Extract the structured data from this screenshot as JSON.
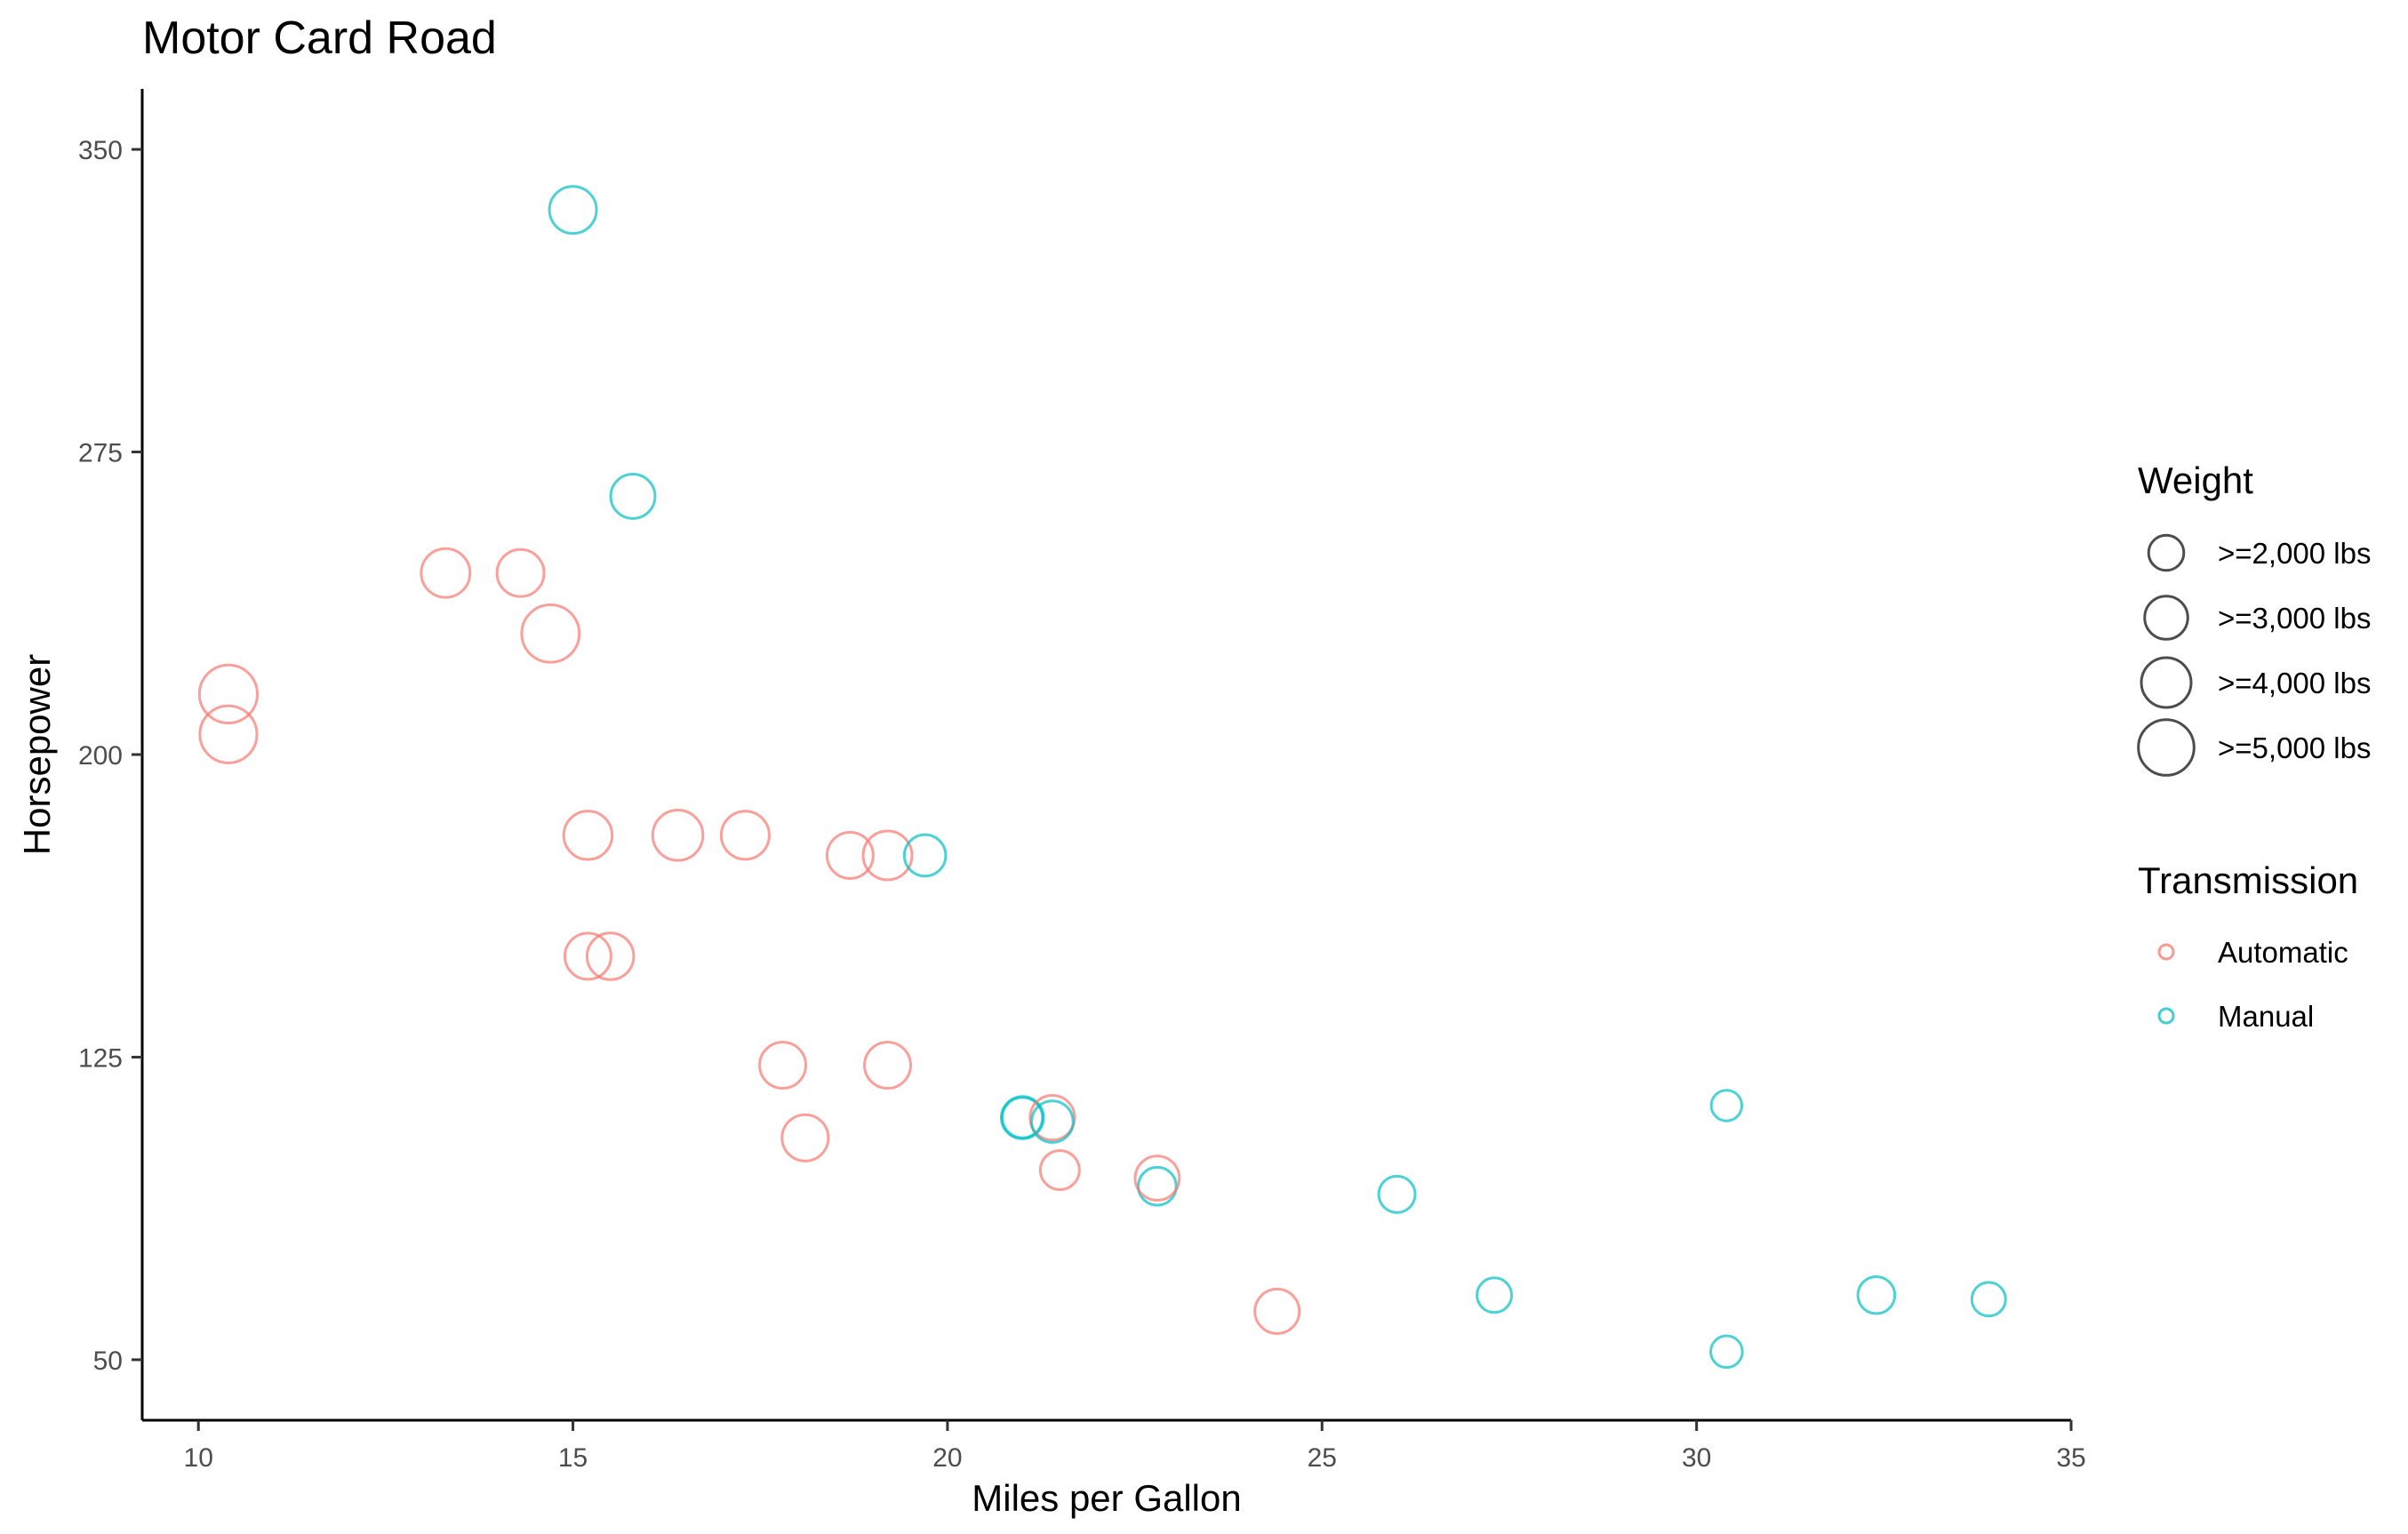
{
  "chart_data": {
    "type": "scatter",
    "title": "Motor Card Road",
    "xlabel": "Miles per Gallon",
    "ylabel": "Horsepower",
    "xlim": [
      9.25,
      35
    ],
    "ylim": [
      35,
      365
    ],
    "x_ticks": [
      10,
      15,
      20,
      25,
      30,
      35
    ],
    "y_ticks": [
      50,
      125,
      200,
      275,
      350
    ],
    "grid": false,
    "legend_placement": "right",
    "size_legend": {
      "title": "Weight",
      "entries": [
        {
          "label": ">=2,000 lbs",
          "wt": 2
        },
        {
          "label": ">=3,000 lbs",
          "wt": 3
        },
        {
          "label": ">=4,000 lbs",
          "wt": 4
        },
        {
          "label": ">=5,000 lbs",
          "wt": 5
        }
      ]
    },
    "color_legend": {
      "title": "Transmission",
      "entries": [
        {
          "label": "Automatic",
          "color": "#F8766D"
        },
        {
          "label": "Manual",
          "color": "#00BFC4"
        }
      ]
    },
    "points": [
      {
        "mpg": 21.0,
        "hp": 110,
        "wt": 2.62,
        "am": "Manual"
      },
      {
        "mpg": 21.0,
        "hp": 110,
        "wt": 2.875,
        "am": "Manual"
      },
      {
        "mpg": 22.8,
        "hp": 93,
        "wt": 2.32,
        "am": "Manual"
      },
      {
        "mpg": 21.4,
        "hp": 110,
        "wt": 3.215,
        "am": "Automatic"
      },
      {
        "mpg": 18.7,
        "hp": 175,
        "wt": 3.44,
        "am": "Automatic"
      },
      {
        "mpg": 18.1,
        "hp": 105,
        "wt": 3.46,
        "am": "Automatic"
      },
      {
        "mpg": 14.3,
        "hp": 245,
        "wt": 3.57,
        "am": "Automatic"
      },
      {
        "mpg": 24.4,
        "hp": 62,
        "wt": 3.19,
        "am": "Automatic"
      },
      {
        "mpg": 22.8,
        "hp": 95,
        "wt": 3.15,
        "am": "Automatic"
      },
      {
        "mpg": 19.2,
        "hp": 123,
        "wt": 3.44,
        "am": "Automatic"
      },
      {
        "mpg": 17.8,
        "hp": 123,
        "wt": 3.44,
        "am": "Automatic"
      },
      {
        "mpg": 16.4,
        "hp": 180,
        "wt": 4.07,
        "am": "Automatic"
      },
      {
        "mpg": 17.3,
        "hp": 180,
        "wt": 3.73,
        "am": "Automatic"
      },
      {
        "mpg": 15.2,
        "hp": 180,
        "wt": 3.78,
        "am": "Automatic"
      },
      {
        "mpg": 10.4,
        "hp": 205,
        "wt": 5.25,
        "am": "Automatic"
      },
      {
        "mpg": 10.4,
        "hp": 215,
        "wt": 5.424,
        "am": "Automatic"
      },
      {
        "mpg": 14.7,
        "hp": 230,
        "wt": 5.345,
        "am": "Automatic"
      },
      {
        "mpg": 32.4,
        "hp": 66,
        "wt": 2.2,
        "am": "Manual"
      },
      {
        "mpg": 30.4,
        "hp": 52,
        "wt": 1.615,
        "am": "Manual"
      },
      {
        "mpg": 33.9,
        "hp": 65,
        "wt": 1.835,
        "am": "Manual"
      },
      {
        "mpg": 21.5,
        "hp": 97,
        "wt": 2.465,
        "am": "Automatic"
      },
      {
        "mpg": 15.5,
        "hp": 150,
        "wt": 3.52,
        "am": "Automatic"
      },
      {
        "mpg": 15.2,
        "hp": 150,
        "wt": 3.435,
        "am": "Automatic"
      },
      {
        "mpg": 13.3,
        "hp": 245,
        "wt": 3.84,
        "am": "Automatic"
      },
      {
        "mpg": 19.2,
        "hp": 175,
        "wt": 3.845,
        "am": "Automatic"
      },
      {
        "mpg": 27.3,
        "hp": 66,
        "wt": 1.935,
        "am": "Manual"
      },
      {
        "mpg": 26.0,
        "hp": 91,
        "wt": 2.14,
        "am": "Manual"
      },
      {
        "mpg": 30.4,
        "hp": 113,
        "wt": 1.513,
        "am": "Manual"
      },
      {
        "mpg": 15.8,
        "hp": 264,
        "wt": 3.17,
        "am": "Manual"
      },
      {
        "mpg": 19.7,
        "hp": 175,
        "wt": 2.77,
        "am": "Manual"
      },
      {
        "mpg": 15.0,
        "hp": 335,
        "wt": 3.57,
        "am": "Manual"
      },
      {
        "mpg": 21.4,
        "hp": 109,
        "wt": 2.78,
        "am": "Manual"
      }
    ]
  }
}
